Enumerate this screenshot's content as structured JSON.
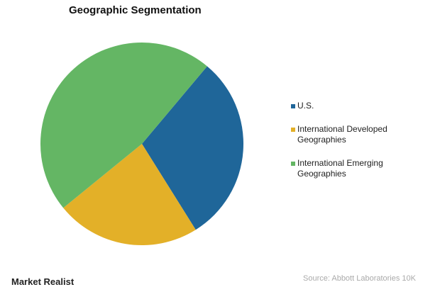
{
  "chart_data": {
    "type": "pie",
    "title": "Geographic Segmentation",
    "categories": [
      "U.S.",
      "International Developed Geographies",
      "International Emerging Geographies"
    ],
    "values": [
      30,
      23,
      47
    ],
    "colors": [
      "#1f6699",
      "#e3b028",
      "#64b664"
    ],
    "legend": "right",
    "source": "Source: Abbott Laboratories 10K",
    "brand": "Market Realist"
  }
}
